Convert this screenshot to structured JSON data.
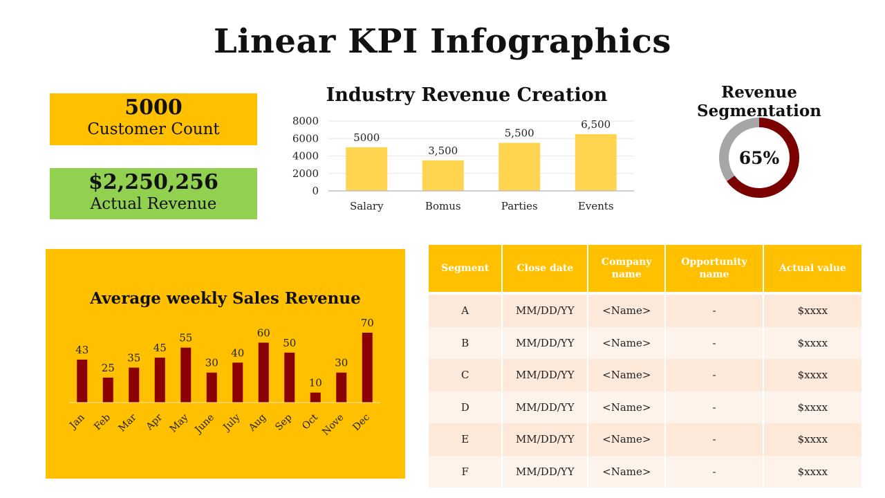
{
  "page": {
    "title": "Linear KPI Infographics"
  },
  "kpis": [
    {
      "value": "5000",
      "label": "Customer Count",
      "color": "#FFC000"
    },
    {
      "value": "$2,250,256",
      "label": "Actual Revenue",
      "color": "#92D050"
    }
  ],
  "chart_data": [
    {
      "type": "bar",
      "title": "Industry Revenue Creation",
      "categories": [
        "Salary",
        "Bomus",
        "Parties",
        "Events"
      ],
      "values": [
        5000,
        3500,
        5500,
        6500
      ],
      "data_labels": [
        "5000",
        "3,500",
        "5,500",
        "6,500"
      ],
      "yticks": [
        "0",
        "2000",
        "4000",
        "6000",
        "8000"
      ],
      "ylim": [
        0,
        8000
      ],
      "grid": true,
      "color": "#FFD54F"
    },
    {
      "type": "pie",
      "title": "Revenue Segmentation",
      "values": [
        65,
        35
      ],
      "center_label": "65%",
      "colors": [
        "#7B0000",
        "#A6A6A6"
      ]
    },
    {
      "type": "bar",
      "title": "Average weekly Sales Revenue",
      "categories": [
        "Jan",
        "Feb",
        "Mar",
        "Apr",
        "May",
        "June",
        "July",
        "Aug",
        "Sep",
        "Oct",
        "Nove",
        "Dec"
      ],
      "values": [
        43,
        25,
        35,
        45,
        55,
        30,
        40,
        60,
        50,
        10,
        30,
        70
      ],
      "ylim": [
        0,
        70
      ],
      "grid": false,
      "color": "#8B0000",
      "background": "#FFC000"
    }
  ],
  "table": {
    "headers": [
      "Segment",
      "Close date",
      "Company name",
      "Opportunity name",
      "Actual value"
    ],
    "rows": [
      [
        "A",
        "MM/DD/YY",
        "<Name>",
        "-",
        "$xxxx"
      ],
      [
        "B",
        "MM/DD/YY",
        "<Name>",
        "-",
        "$xxxx"
      ],
      [
        "C",
        "MM/DD/YY",
        "<Name>",
        "-",
        "$xxxx"
      ],
      [
        "D",
        "MM/DD/YY",
        "<Name>",
        "-",
        "$xxxx"
      ],
      [
        "E",
        "MM/DD/YY",
        "<Name>",
        "-",
        "$xxxx"
      ],
      [
        "F",
        "MM/DD/YY",
        "<Name>",
        "-",
        "$xxxx"
      ]
    ],
    "header_color": "#FFC000",
    "row_colors": [
      "#FDE9D9",
      "#FEF3EA"
    ]
  }
}
